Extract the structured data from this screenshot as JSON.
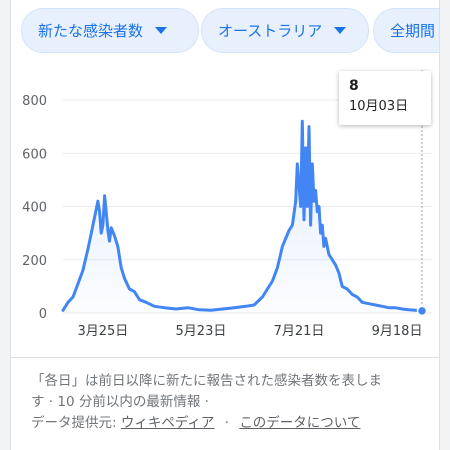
{
  "filters": {
    "metric": "新たな感染者数",
    "region": "オーストラリア",
    "period": "全期間"
  },
  "tooltip": {
    "value": "8",
    "date": "10月03日"
  },
  "footer": {
    "note_line1": "「各日」は前日以降に新たに報告された感染者数を表しま",
    "note_line2": "す · 10 分前以内の最新情報 ·",
    "source_label": "データ提供元:",
    "source_link": "ウィキペディア",
    "separator": "·",
    "about_link": "このデータについて"
  },
  "colors": {
    "line": "#4285f4",
    "chip_text": "#1a73e8",
    "chip_bg": "#e8f0fe"
  },
  "chart_data": {
    "type": "area",
    "title": "",
    "xlabel": "",
    "ylabel": "",
    "x_tick_labels": [
      "3月25日",
      "5月23日",
      "7月21日",
      "9月18日"
    ],
    "x_tick_dates": [
      "2020-03-25",
      "2020-05-23",
      "2020-07-21",
      "2020-09-18"
    ],
    "y_ticks": [
      0,
      200,
      400,
      600,
      800
    ],
    "ylim": [
      0,
      800
    ],
    "xlim": [
      "2020-03-01",
      "2020-10-03"
    ],
    "grid": true,
    "series": [
      {
        "x": [
          "2020-03-01",
          "2020-03-04",
          "2020-03-07",
          "2020-03-10",
          "2020-03-13",
          "2020-03-16",
          "2020-03-18",
          "2020-03-20",
          "2020-03-22",
          "2020-03-23",
          "2020-03-24",
          "2020-03-25",
          "2020-03-26",
          "2020-03-27",
          "2020-03-28",
          "2020-03-29",
          "2020-03-30",
          "2020-04-01",
          "2020-04-03",
          "2020-04-05",
          "2020-04-07",
          "2020-04-10",
          "2020-04-13",
          "2020-04-16",
          "2020-04-20",
          "2020-04-25",
          "2020-05-01",
          "2020-05-08",
          "2020-05-15",
          "2020-05-22",
          "2020-05-29",
          "2020-06-05",
          "2020-06-12",
          "2020-06-19",
          "2020-06-24",
          "2020-06-29",
          "2020-07-02",
          "2020-07-05",
          "2020-07-08",
          "2020-07-11",
          "2020-07-13",
          "2020-07-15",
          "2020-07-17",
          "2020-07-19",
          "2020-07-20",
          "2020-07-22",
          "2020-07-23",
          "2020-07-24",
          "2020-07-25",
          "2020-07-26",
          "2020-07-27",
          "2020-07-28",
          "2020-07-29",
          "2020-07-30",
          "2020-07-31",
          "2020-08-01",
          "2020-08-02",
          "2020-08-03",
          "2020-08-04",
          "2020-08-05",
          "2020-08-06",
          "2020-08-08",
          "2020-08-10",
          "2020-08-12",
          "2020-08-14",
          "2020-08-16",
          "2020-08-19",
          "2020-08-22",
          "2020-08-25",
          "2020-08-28",
          "2020-09-01",
          "2020-09-05",
          "2020-09-09",
          "2020-09-13",
          "2020-09-17",
          "2020-09-21",
          "2020-09-25",
          "2020-09-29",
          "2020-10-03"
        ],
        "values": [
          10,
          40,
          60,
          110,
          160,
          240,
          300,
          360,
          420,
          380,
          300,
          330,
          440,
          380,
          310,
          270,
          320,
          290,
          250,
          170,
          130,
          90,
          80,
          50,
          40,
          25,
          20,
          15,
          20,
          12,
          10,
          15,
          20,
          25,
          30,
          60,
          90,
          120,
          170,
          250,
          280,
          310,
          330,
          420,
          560,
          400,
          720,
          350,
          620,
          400,
          700,
          330,
          560,
          420,
          460,
          380,
          400,
          300,
          330,
          250,
          280,
          220,
          200,
          180,
          150,
          100,
          90,
          70,
          60,
          40,
          35,
          30,
          25,
          20,
          20,
          15,
          12,
          10,
          8
        ]
      }
    ]
  }
}
